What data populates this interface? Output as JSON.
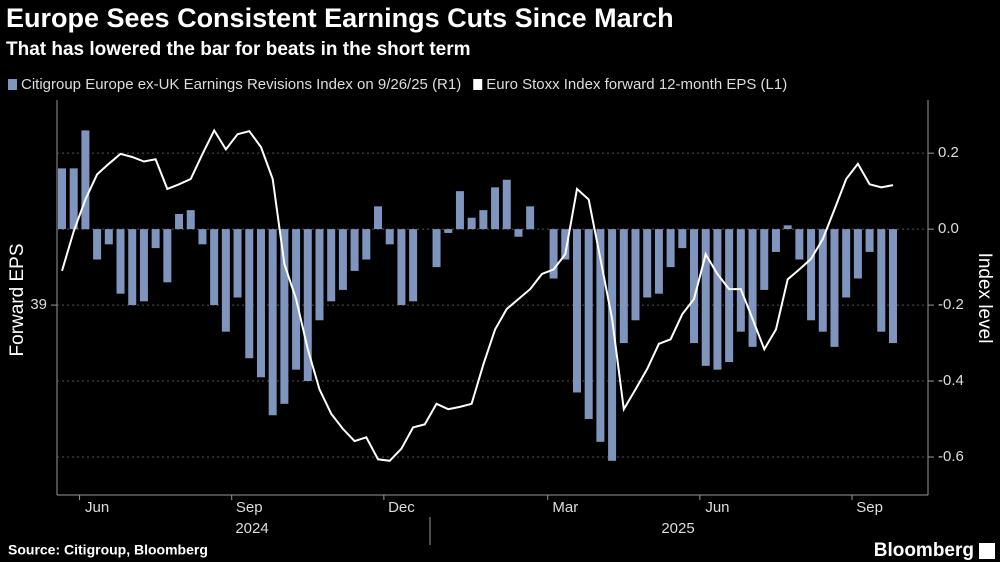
{
  "chart_data": {
    "type": "combo",
    "title": "Europe Sees Consistent Earnings Cuts Since March",
    "subtitle": "That has lowered the bar for beats in the short term",
    "ylabel": "Forward EPS",
    "y2label": "Index level",
    "source": "Source: Citigroup, Bloomberg",
    "brand": "Bloomberg",
    "categories": [
      null,
      null,
      null,
      "Jun",
      null,
      null,
      null,
      null,
      null,
      null,
      null,
      null,
      null,
      null,
      null,
      null,
      "Sep",
      null,
      null,
      null,
      null,
      null,
      null,
      null,
      null,
      null,
      null,
      null,
      null,
      "Dec",
      null,
      null,
      null,
      null,
      null,
      null,
      null,
      null,
      null,
      null,
      null,
      null,
      null,
      "Mar",
      null,
      null,
      null,
      null,
      null,
      null,
      null,
      null,
      null,
      null,
      null,
      null,
      "Jun",
      null,
      null,
      null,
      null,
      null,
      null,
      null,
      null,
      null,
      null,
      null,
      null,
      "Sep",
      null,
      null
    ],
    "x_groups": [
      "2024",
      "2025"
    ],
    "ylim": [
      36.5,
      41.7
    ],
    "yticks": [
      39
    ],
    "y2lim": [
      -0.7,
      0.34
    ],
    "y2ticks": [
      0.2,
      {
        "value": 0,
        "label": "0.0"
      },
      -0.2,
      -0.4,
      -0.6
    ],
    "grid": true,
    "series": [
      {
        "name": "Citigroup Europe ex-UK Earnings Revisions Index on 9/26/25 (R1)",
        "type": "bar",
        "axis": "y2",
        "color": "#7f95bd",
        "values": [
          0.16,
          0.16,
          0.26,
          -0.08,
          -0.04,
          -0.17,
          -0.2,
          -0.19,
          -0.05,
          -0.14,
          0.04,
          0.05,
          -0.04,
          -0.2,
          -0.27,
          -0.18,
          -0.34,
          -0.39,
          -0.49,
          -0.46,
          -0.37,
          -0.4,
          -0.24,
          -0.19,
          -0.16,
          -0.11,
          -0.08,
          0.06,
          -0.04,
          -0.2,
          -0.19,
          0,
          -0.1,
          -0.01,
          0.1,
          0.03,
          0.05,
          0.11,
          0.13,
          -0.02,
          0.06,
          0,
          -0.13,
          -0.08,
          -0.43,
          -0.5,
          -0.56,
          -0.61,
          -0.3,
          -0.24,
          -0.18,
          -0.17,
          -0.1,
          -0.05,
          -0.3,
          -0.36,
          -0.37,
          -0.35,
          -0.27,
          -0.31,
          -0.16,
          -0.06,
          0.01,
          -0.08,
          -0.24,
          -0.27,
          -0.31,
          -0.18,
          -0.13,
          -0.06,
          -0.27,
          -0.3
        ]
      },
      {
        "name": "Euro Stoxx Index forward 12-month EPS (L1)",
        "type": "line",
        "axis": "y",
        "color": "#ffffff",
        "values": [
          39.45,
          39.97,
          40.39,
          40.72,
          40.86,
          40.99,
          40.95,
          40.89,
          40.92,
          40.53,
          40.59,
          40.66,
          40.99,
          41.3,
          41.05,
          41.25,
          41.29,
          41.08,
          40.66,
          39.54,
          39.08,
          38.42,
          37.89,
          37.57,
          37.37,
          37.21,
          37.26,
          36.97,
          36.95,
          37.11,
          37.39,
          37.43,
          37.7,
          37.63,
          37.66,
          37.7,
          38.22,
          38.68,
          38.95,
          39.08,
          39.21,
          39.41,
          39.47,
          39.67,
          40.53,
          40.39,
          39.61,
          38.82,
          37.63,
          37.89,
          38.16,
          38.49,
          38.55,
          38.88,
          39.08,
          39.67,
          39.41,
          39.21,
          39.21,
          38.82,
          38.42,
          38.68,
          39.34,
          39.47,
          39.61,
          39.87,
          40.26,
          40.66,
          40.86,
          40.59,
          40.55,
          40.58
        ]
      }
    ]
  }
}
